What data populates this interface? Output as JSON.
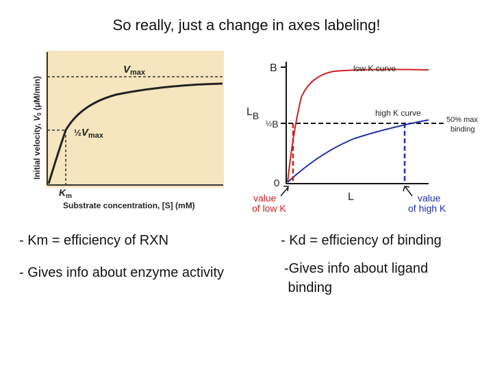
{
  "slide": {
    "title": "So really, just a change in axes labeling!",
    "left_text": [
      "- Km = efficiency of RXN",
      "- Gives info about enzyme activity"
    ],
    "right_text": [
      "- Kd = efficiency of binding",
      "-Gives info about ligand",
      " binding"
    ]
  },
  "michaelis_panel": {
    "ylabel_prefix": "Initial velocity, ",
    "ylabel_v": "V",
    "ylabel_sub": "0",
    "ylabel_suffix": " (μM/min)",
    "xlabel": "Substrate concentration, [S] (mM)",
    "vmax_v": "V",
    "vmax_sub": "max",
    "half": "½",
    "km_k": "K",
    "km_sub": "m",
    "colors": {
      "background": "#f5e6bf",
      "curve": "#222222"
    }
  },
  "binding_panel": {
    "y_top": "B",
    "y_lb": "L",
    "y_lb_sub": "B",
    "y_half_b": "B",
    "y_zero": "0",
    "x_label": "L",
    "low_k_label": "low K curve",
    "high_k_label": "high K curve",
    "max50_line1": "50% max",
    "max50_line2": "binding",
    "low_value_line1": "value",
    "low_value_line2": "of low K",
    "high_value_line1": "value",
    "high_value_line2": "of high K",
    "colors": {
      "low": "#cc1f1f",
      "high": "#1f2fa8"
    }
  }
}
